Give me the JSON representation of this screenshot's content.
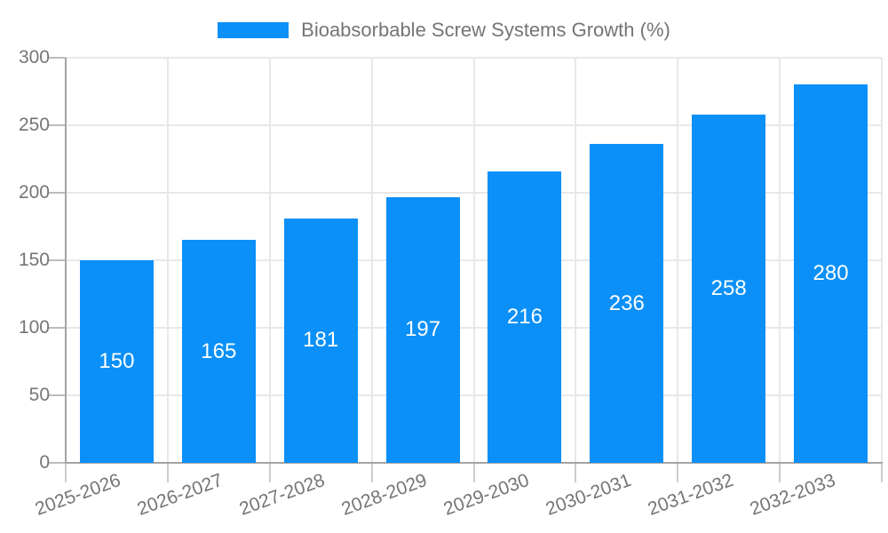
{
  "chart_data": {
    "type": "bar",
    "legend": "Bioabsorbable Screw Systems Growth (%)",
    "categories": [
      "2025-2026",
      "2026-2027",
      "2027-2028",
      "2028-2029",
      "2029-2030",
      "2030-2031",
      "2031-2032",
      "2032-2033"
    ],
    "values": [
      150,
      165,
      181,
      197,
      216,
      236,
      258,
      280
    ],
    "yticks": [
      0,
      50,
      100,
      150,
      200,
      250,
      300
    ],
    "ylim": [
      0,
      300
    ],
    "grid": true,
    "legend_position": "top-center",
    "x_label_rotation_deg": -20,
    "colors": {
      "bar": "#0a90f8",
      "bar_value_text": "#ffffff",
      "axis_text": "#757575",
      "legend_text": "#757575",
      "axis_line": "#a3a3a3",
      "gridline": "#e8e8e8",
      "background": "#ffffff"
    }
  }
}
